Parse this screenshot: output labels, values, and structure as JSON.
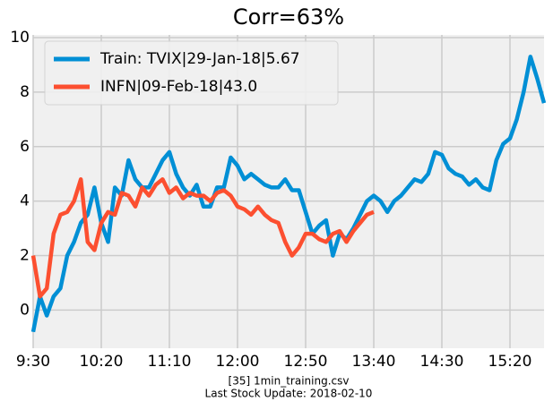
{
  "chart_data": {
    "type": "line",
    "title": "Corr=63%",
    "x": [
      0,
      5,
      10,
      15,
      20,
      25,
      30,
      35,
      40,
      45,
      50,
      55,
      60,
      65,
      70,
      75,
      80,
      85,
      90,
      95,
      100,
      105,
      110,
      115,
      120,
      125,
      130,
      135,
      140,
      145,
      150,
      155,
      160,
      165,
      170,
      175,
      180,
      185,
      190,
      195,
      200,
      205,
      210,
      215,
      220,
      225,
      230,
      235,
      240,
      245,
      250,
      255,
      260,
      265,
      270,
      275,
      280,
      285,
      290,
      295,
      300,
      305,
      310,
      315,
      320,
      325,
      330,
      335,
      340,
      345,
      350,
      355,
      360,
      365,
      370,
      375
    ],
    "series": [
      {
        "name": "Train: TVIX|29-Jan-18|5.67",
        "color": "#008fd5",
        "values": [
          -0.8,
          0.5,
          -0.2,
          0.5,
          0.8,
          2,
          2.5,
          3.2,
          3.5,
          4.5,
          3.2,
          2.5,
          4.5,
          4.2,
          5.5,
          4.8,
          4.5,
          4.5,
          5,
          5.5,
          5.8,
          5,
          4.5,
          4.2,
          4.6,
          3.8,
          3.8,
          4.5,
          4.5,
          5.6,
          5.3,
          4.8,
          5,
          4.8,
          4.6,
          4.5,
          4.5,
          4.8,
          4.4,
          4.4,
          3.6,
          2.8,
          3.1,
          3.3,
          2,
          2.8,
          2.6,
          3,
          3.5,
          4,
          4.2,
          4,
          3.6,
          4,
          4.2,
          4.5,
          4.8,
          4.7,
          5,
          5.8,
          5.7,
          5.2,
          5,
          4.9,
          4.6,
          4.8,
          4.5,
          4.4,
          5.5,
          6.1,
          6.3,
          7,
          8,
          9.3,
          8.5,
          7.6
        ]
      },
      {
        "name": "INFN|09-Feb-18|43.0",
        "color": "#fc4f30",
        "values": [
          2,
          0.5,
          0.8,
          2.8,
          3.5,
          3.6,
          4,
          4.8,
          2.5,
          2.2,
          3.2,
          3.6,
          3.5,
          4.3,
          4.2,
          3.8,
          4.5,
          4.2,
          4.6,
          4.8,
          4.3,
          4.5,
          4.1,
          4.3,
          4.2,
          4.2,
          4,
          4.3,
          4.4,
          4.2,
          3.8,
          3.7,
          3.5,
          3.8,
          3.5,
          3.3,
          3.2,
          2.5,
          2,
          2.3,
          2.8,
          2.8,
          2.6,
          2.5,
          2.8,
          2.9,
          2.5,
          2.9,
          3.2,
          3.5,
          3.6,
          null,
          null,
          null,
          null,
          null,
          null,
          null,
          null,
          null,
          null,
          null,
          null,
          null,
          null,
          null,
          null,
          null,
          null,
          null,
          null,
          null,
          null,
          null,
          null,
          null
        ]
      }
    ],
    "xlim": [
      0,
      375
    ],
    "xticks": [
      {
        "value": 0,
        "label": "9:30"
      },
      {
        "value": 50,
        "label": "10:20"
      },
      {
        "value": 100,
        "label": "11:10"
      },
      {
        "value": 150,
        "label": "12:00"
      },
      {
        "value": 200,
        "label": "12:50"
      },
      {
        "value": 250,
        "label": "13:40"
      },
      {
        "value": 300,
        "label": "14:30"
      },
      {
        "value": 350,
        "label": "15:20"
      }
    ],
    "ylim": [
      -1.4,
      10.1
    ],
    "yticks": [
      0,
      2,
      4,
      6,
      8,
      10
    ],
    "grid": true,
    "legend": "upper left",
    "footer": [
      "[35] 1min_training.csv",
      "Last Stock Update: 2018-02-10"
    ]
  }
}
